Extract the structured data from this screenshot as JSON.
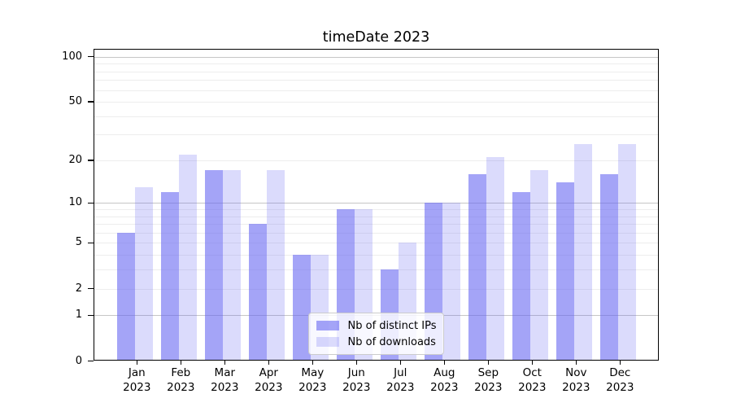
{
  "title": "timeDate 2023",
  "chart_data": {
    "type": "bar",
    "title": "timeDate 2023",
    "categories": [
      "Jan 2023",
      "Feb 2023",
      "Mar 2023",
      "Apr 2023",
      "May 2023",
      "Jun 2023",
      "Jul 2023",
      "Aug 2023",
      "Sep 2023",
      "Oct 2023",
      "Nov 2023",
      "Dec 2023"
    ],
    "series": [
      {
        "name": "Nb of distinct IPs",
        "values": [
          6,
          12,
          17,
          7,
          4,
          9,
          3,
          10,
          16,
          12,
          14,
          16
        ],
        "fill": "rgba(103,103,241,0.60)",
        "hex": "#a4a4f7"
      },
      {
        "name": "Nb of downloads",
        "values": [
          13,
          22,
          17,
          17,
          4,
          9,
          5,
          10,
          21,
          17,
          26,
          26
        ],
        "fill": "rgba(103,103,241,0.24)",
        "hex": "#dadaf9"
      }
    ],
    "xlabel": "",
    "ylabel": "",
    "y_scale": "symlog",
    "y_ticks": [
      0,
      1,
      2,
      5,
      10,
      20,
      50,
      100
    ],
    "ylim": [
      0,
      105
    ],
    "grid": {
      "major_values": [
        1,
        10,
        100
      ],
      "minor_values": [
        2,
        3,
        4,
        5,
        6,
        7,
        8,
        9,
        20,
        30,
        40,
        50,
        60,
        70,
        80,
        90
      ],
      "major_color": "#c6c6c6",
      "minor_color": "#ededed"
    },
    "legend": {
      "position": "lower center",
      "items": [
        "Nb of distinct IPs",
        "Nb of downloads"
      ]
    },
    "frame_color": "#000000",
    "background_color": "#ffffff"
  }
}
